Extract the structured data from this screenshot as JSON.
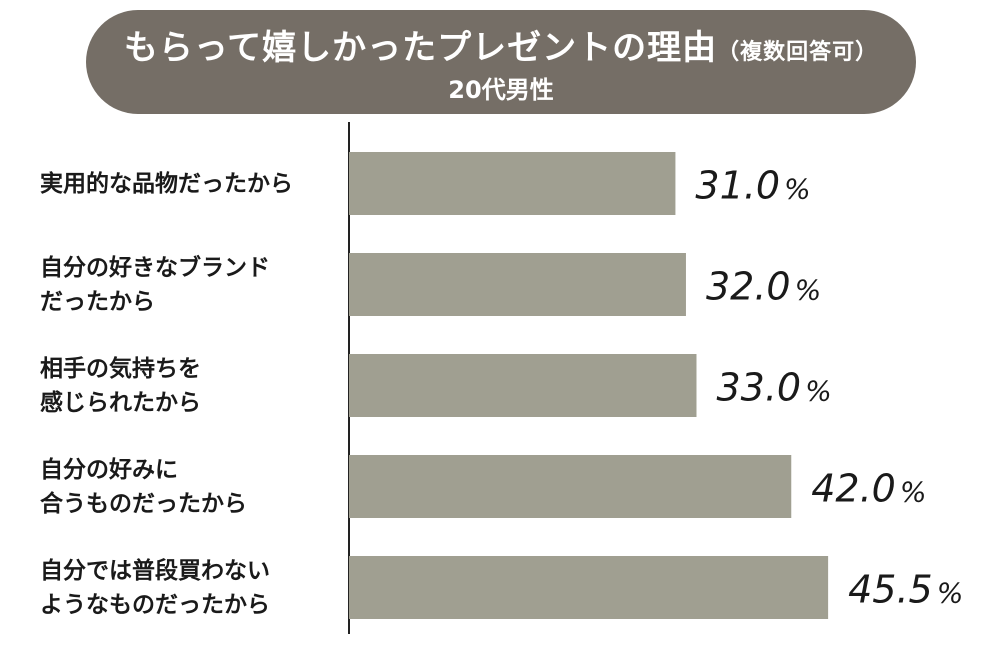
{
  "title": {
    "main": "もらって嬉しかったプレゼントの理由",
    "paren": "（複数回答可）",
    "sub": "20代男性"
  },
  "colors": {
    "banner": "#756e66",
    "bar": "#a09f91",
    "axis": "#222222"
  },
  "chart_data": {
    "type": "bar",
    "orientation": "horizontal",
    "categories": [
      "実用的な品物だったから",
      "自分の好きなブランド\nだったから",
      "相手の気持ちを\n感じられたから",
      "自分の好みに\n合うものだったから",
      "自分では普段買わない\nようなものだったから"
    ],
    "values": [
      31.0,
      32.0,
      33.0,
      42.0,
      45.5
    ],
    "value_labels": [
      "31.0",
      "32.0",
      "33.0",
      "42.0",
      "45.5"
    ],
    "unit": "%",
    "xlim": [
      0,
      50
    ],
    "grid": false,
    "legend": "none"
  }
}
